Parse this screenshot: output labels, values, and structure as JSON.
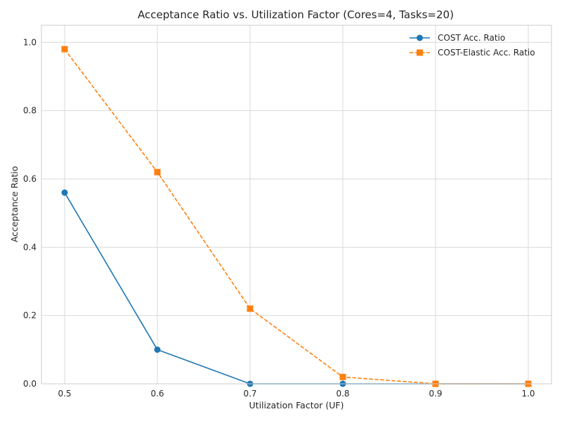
{
  "chart_data": {
    "type": "line",
    "title": "Acceptance Ratio vs. Utilization Factor (Cores=4, Tasks=20)",
    "xlabel": "Utilization Factor (UF)",
    "ylabel": "Acceptance Ratio",
    "x": [
      0.5,
      0.6,
      0.7,
      0.8,
      0.9,
      1.0
    ],
    "xlim": [
      0.475,
      1.025
    ],
    "ylim": [
      0.0,
      1.05
    ],
    "xticks": [
      "0.5",
      "0.6",
      "0.7",
      "0.8",
      "0.9",
      "1.0"
    ],
    "yticks": [
      "0.0",
      "0.2",
      "0.4",
      "0.6",
      "0.8",
      "1.0"
    ],
    "grid": true,
    "legend_position": "top-right",
    "series": [
      {
        "name": "COST Acc. Ratio",
        "values": [
          0.56,
          0.1,
          0.0,
          0.0,
          0.0,
          0.0
        ],
        "color": "#1f77b4",
        "marker": "circle",
        "linestyle": "solid"
      },
      {
        "name": "COST-Elastic Acc. Ratio",
        "values": [
          0.98,
          0.62,
          0.22,
          0.02,
          0.0,
          0.0
        ],
        "color": "#ff7f0e",
        "marker": "square",
        "linestyle": "dashed"
      }
    ]
  }
}
